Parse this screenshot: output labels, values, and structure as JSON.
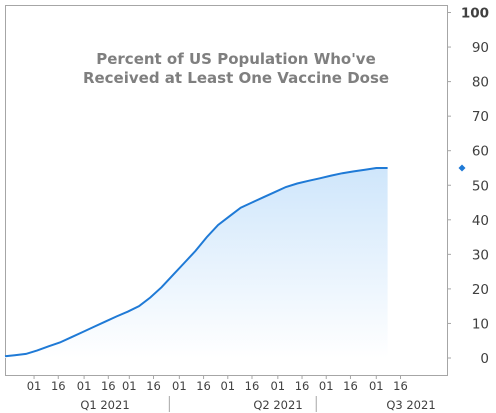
{
  "chart_data": {
    "type": "area",
    "title": "Percent of US Population Who've Received at Least One Vaccine Dose",
    "title_lines": [
      "Percent of US Population Who've",
      "Received at Least One Vaccine Dose"
    ],
    "xlabel": "",
    "ylabel": "",
    "ylim": [
      0,
      100
    ],
    "y_ticks": [
      "0",
      "10",
      "20",
      "30",
      "40",
      "50",
      "60",
      "70",
      "80",
      "90",
      "100"
    ],
    "y_axis_side": "right",
    "grid": false,
    "x_tick_labels": [
      "01",
      "16",
      "01",
      "16",
      "01",
      "16",
      "01",
      "16",
      "01",
      "16",
      "01",
      "16",
      "01",
      "16",
      "01",
      "16"
    ],
    "x_groups": [
      "Q1 2021",
      "Q2 2021",
      "Q3 2021"
    ],
    "line_color": "#1f7ad6",
    "fill_color_top": "#cfe6fb",
    "fill_color_bottom": "#ffffff",
    "last_value_marker": 55,
    "series": [
      {
        "x": [
          "2020-12-14",
          "2020-12-20",
          "2020-12-27",
          "2021-01-03",
          "2021-01-10",
          "2021-01-17",
          "2021-01-24",
          "2021-01-31",
          "2021-02-07",
          "2021-02-14",
          "2021-02-21",
          "2021-02-28",
          "2021-03-07",
          "2021-03-14",
          "2021-03-21",
          "2021-03-28",
          "2021-04-04",
          "2021-04-11",
          "2021-04-18",
          "2021-04-25",
          "2021-05-02",
          "2021-05-09",
          "2021-05-16",
          "2021-05-23",
          "2021-05-30",
          "2021-06-06",
          "2021-06-13",
          "2021-06-20",
          "2021-06-27",
          "2021-07-04",
          "2021-07-11",
          "2021-07-18",
          "2021-07-25",
          "2021-08-01",
          "2021-08-08"
        ],
        "values": [
          0.5,
          0.8,
          1.2,
          2.2,
          3.4,
          4.5,
          6.0,
          7.5,
          9.0,
          10.5,
          12.0,
          13.4,
          15.0,
          17.5,
          20.5,
          24.0,
          27.5,
          31.0,
          35.0,
          38.5,
          41.0,
          43.5,
          45.0,
          46.5,
          48.0,
          49.5,
          50.5,
          51.3,
          52.0,
          52.8,
          53.5,
          54.0,
          54.5,
          55.0,
          55.0
        ]
      }
    ]
  }
}
